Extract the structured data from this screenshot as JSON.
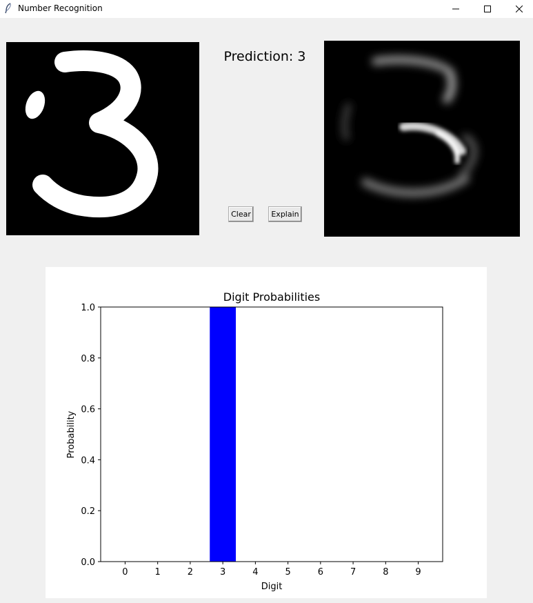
{
  "window": {
    "title": "Number Recognition",
    "icon": "feather-icon"
  },
  "prediction": {
    "label": "Prediction: 3"
  },
  "buttons": {
    "clear": "Clear",
    "explain": "Explain"
  },
  "chart_data": {
    "type": "bar",
    "title": "Digit Probabilities",
    "xlabel": "Digit",
    "ylabel": "Probability",
    "categories": [
      "0",
      "1",
      "2",
      "3",
      "4",
      "5",
      "6",
      "7",
      "8",
      "9"
    ],
    "values": [
      0.0,
      0.0,
      0.0,
      1.0,
      0.0,
      0.0,
      0.0,
      0.0,
      0.0,
      0.0
    ],
    "ylim": [
      0,
      1.0
    ],
    "yticks": [
      "0.0",
      "0.2",
      "0.4",
      "0.6",
      "0.8",
      "1.0"
    ],
    "bar_color": "#0000ff",
    "grid": false
  }
}
